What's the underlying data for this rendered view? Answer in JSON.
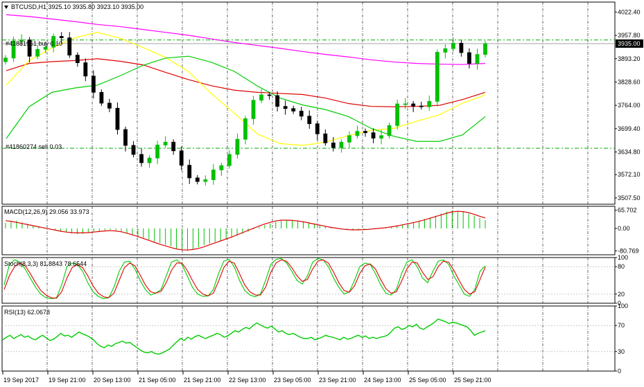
{
  "window": {
    "symbol_line": "BTCUSD,H1  3925.10 3935.80 3923.10 3935.00"
  },
  "colors": {
    "bull": "#00c000",
    "bear": "#000000",
    "ma_magenta": "#ff00ff",
    "ma_red": "#e00000",
    "ma_yellow": "#ffff00",
    "ma_green": "#00cc00",
    "grid": "#000000",
    "order_line": "#00aa00"
  },
  "chart_data": [
    {
      "type": "candlestick",
      "title": "BTCUSD,H1  3925.10 3935.80 3923.10 3935.00",
      "ylim": [
        3490,
        4050
      ],
      "y_ticks": [
        "4022.40",
        "3957.80",
        "3893.20",
        "3828.60",
        "3764.00",
        "3699.40",
        "3634.80",
        "3572.10",
        "3507.50"
      ],
      "current_price": "3935.00",
      "orders": [
        {
          "label": "#41881961 buy 0.10",
          "price": 3945
        },
        {
          "label": "#41860274 sell 0.03",
          "price": 3645
        }
      ],
      "series": [
        {
          "color": "#ff00ff",
          "values": [
            4015,
            4010,
            4003,
            3996,
            3988,
            3982,
            3974,
            3966,
            3958,
            3948,
            3938,
            3930,
            3922,
            3913,
            3905,
            3898,
            3890,
            3884,
            3880,
            3878,
            3877,
            3880
          ]
        },
        {
          "color": "#e00000",
          "values": [
            3860,
            3880,
            3885,
            3888,
            3893,
            3886,
            3876,
            3855,
            3835,
            3818,
            3806,
            3800,
            3797,
            3794,
            3784,
            3769,
            3761,
            3760,
            3761,
            3764,
            3780,
            3800
          ]
        },
        {
          "color": "#ffff00",
          "values": [
            3820,
            3888,
            3923,
            3951,
            3966,
            3950,
            3924,
            3896,
            3857,
            3796,
            3742,
            3685,
            3658,
            3653,
            3662,
            3680,
            3695,
            3700,
            3720,
            3738,
            3770,
            3793
          ]
        },
        {
          "color": "#00cc00",
          "values": [
            3672,
            3760,
            3800,
            3812,
            3820,
            3846,
            3875,
            3895,
            3900,
            3883,
            3858,
            3818,
            3784,
            3765,
            3752,
            3733,
            3700,
            3678,
            3664,
            3664,
            3682,
            3733
          ]
        }
      ],
      "candles_close": [
        3895,
        3942,
        3945,
        3900,
        3919,
        3925,
        3955,
        3951,
        3903,
        3882,
        3845,
        3800,
        3770,
        3756,
        3697,
        3653,
        3628,
        3605,
        3618,
        3654,
        3662,
        3638,
        3598,
        3563,
        3553,
        3558,
        3585,
        3597,
        3628,
        3670,
        3727,
        3778,
        3793,
        3791,
        3761,
        3755,
        3748,
        3734,
        3713,
        3685,
        3660,
        3647,
        3662,
        3680,
        3692,
        3688,
        3673,
        3680,
        3708,
        3768,
        3768,
        3762,
        3760,
        3775,
        3911,
        3921,
        3936,
        3910,
        3880,
        3905,
        3935
      ]
    },
    {
      "type": "histogram",
      "title": "MACD(12,26,9) 29.056 33.973",
      "y_ticks": [
        "65.702",
        "0.00",
        "-80.769"
      ],
      "ylim": [
        -95,
        80
      ],
      "values": [
        20,
        25,
        28,
        22,
        16,
        10,
        6,
        4,
        0,
        -4,
        -9,
        -14,
        -18,
        -20,
        -19,
        -16,
        -12,
        -9,
        -6,
        -5,
        -6,
        -10,
        -16,
        -22,
        -28,
        -34,
        -40,
        -47,
        -52,
        -59,
        -65,
        -72,
        -78,
        -80,
        -75,
        -68,
        -60,
        -54,
        -49,
        -44,
        -39,
        -33,
        -26,
        -19,
        -11,
        -3,
        5,
        12,
        18,
        24,
        28,
        30,
        31,
        29,
        26,
        22,
        17,
        12,
        8,
        4,
        0,
        -3,
        -5,
        -7,
        -6,
        -4,
        -2,
        0,
        2,
        4,
        7,
        11,
        15,
        19,
        23,
        28,
        34,
        40,
        46,
        54,
        60,
        65,
        64,
        60,
        54,
        46,
        38,
        30
      ],
      "signal": [
        28,
        26,
        22,
        18,
        14,
        10,
        6,
        2,
        -2,
        -6,
        -10,
        -13,
        -15,
        -16,
        -16,
        -15,
        -13,
        -11,
        -9,
        -8,
        -9,
        -12,
        -17,
        -23,
        -29,
        -36,
        -43,
        -50,
        -57,
        -63,
        -69,
        -74,
        -77,
        -78,
        -76,
        -72,
        -66,
        -59,
        -52,
        -45,
        -38,
        -31,
        -23,
        -15,
        -7,
        1,
        9,
        16,
        22,
        27,
        30,
        30,
        29,
        27,
        24,
        20,
        16,
        12,
        8,
        4,
        1,
        -2,
        -4,
        -5,
        -5,
        -4,
        -3,
        -1,
        1,
        3,
        6,
        9,
        13,
        17,
        21,
        26,
        31,
        37,
        43,
        49,
        55,
        60,
        62,
        61,
        57,
        51,
        44,
        38
      ]
    },
    {
      "type": "line",
      "title": "Stoch(8,3,3) 81.8843 78.6544",
      "y_ticks": [
        "100",
        "80",
        "20",
        "0"
      ],
      "ylim": [
        0,
        100
      ],
      "series": [
        {
          "color": "#00cc00",
          "values": [
            40,
            85,
            95,
            90,
            75,
            55,
            35,
            20,
            12,
            10,
            12,
            40,
            80,
            88,
            85,
            70,
            45,
            25,
            15,
            10,
            12,
            35,
            70,
            90,
            92,
            75,
            50,
            30,
            18,
            22,
            30,
            60,
            90,
            95,
            85,
            60,
            35,
            20,
            15,
            16,
            30,
            65,
            92,
            96,
            80,
            50,
            28,
            18,
            14,
            20,
            50,
            85,
            96,
            98,
            88,
            70,
            50,
            42,
            60,
            90,
            98,
            95,
            80,
            55,
            35,
            20,
            25,
            50,
            80,
            88,
            85,
            65,
            40,
            22,
            18,
            30,
            65,
            90,
            95,
            80,
            55,
            45,
            70,
            92,
            95,
            85,
            60,
            40,
            20,
            15,
            30,
            70,
            82
          ]
        },
        {
          "color": "#e00000",
          "values": [
            30,
            60,
            80,
            88,
            82,
            65,
            45,
            28,
            18,
            12,
            11,
            25,
            55,
            78,
            85,
            78,
            60,
            38,
            22,
            14,
            12,
            22,
            50,
            78,
            88,
            82,
            62,
            40,
            25,
            22,
            26,
            45,
            72,
            88,
            88,
            72,
            50,
            30,
            20,
            16,
            22,
            48,
            78,
            92,
            88,
            65,
            40,
            25,
            18,
            18,
            35,
            68,
            88,
            95,
            92,
            78,
            60,
            48,
            52,
            75,
            92,
            95,
            88,
            68,
            45,
            28,
            24,
            38,
            65,
            82,
            86,
            75,
            52,
            32,
            22,
            25,
            48,
            75,
            90,
            88,
            68,
            52,
            58,
            80,
            92,
            90,
            72,
            50,
            30,
            20,
            25,
            52,
            79
          ]
        }
      ]
    },
    {
      "type": "line",
      "title": "RSI(13) 62.0678",
      "y_ticks": [
        "100",
        "70",
        "30",
        "0"
      ],
      "ylim": [
        0,
        100
      ],
      "series": [
        {
          "color": "#00cc00",
          "values": [
            48,
            52,
            55,
            50,
            53,
            56,
            52,
            54,
            50,
            48,
            52,
            55,
            51,
            47,
            49,
            53,
            58,
            54,
            55,
            52,
            56,
            60,
            57,
            55,
            52,
            48,
            42,
            38,
            36,
            40,
            38,
            42,
            44,
            46,
            43,
            44,
            40,
            36,
            32,
            29,
            28,
            30,
            27,
            26,
            28,
            31,
            34,
            40,
            45,
            50,
            47,
            52,
            49,
            53,
            55,
            52,
            50,
            53,
            55,
            58,
            56,
            52,
            54,
            58,
            62,
            60,
            64,
            67,
            65,
            70,
            74,
            71,
            68,
            66,
            69,
            65,
            60,
            62,
            58,
            56,
            58,
            55,
            52,
            50,
            50,
            52,
            48,
            50,
            52,
            55,
            53,
            52,
            50,
            48,
            52,
            49,
            50,
            53,
            55,
            52,
            54,
            50,
            52,
            50,
            52,
            53,
            55,
            60,
            66,
            68,
            64,
            66,
            70,
            68,
            72,
            66,
            64,
            68,
            71,
            75,
            80,
            78,
            76,
            73,
            75,
            74,
            72,
            70,
            68,
            62,
            55,
            58,
            60,
            62
          ]
        }
      ]
    }
  ],
  "x_axis_labels": [
    "19 Sep 2017",
    "19 Sep 21:00",
    "20 Sep 13:00",
    "21 Sep 05:00",
    "21 Sep 21:00",
    "22 Sep 13:00",
    "23 Sep 05:00",
    "23 Sep 21:00",
    "24 Sep 13:00",
    "25 Sep 05:00",
    "25 Sep 21:00"
  ]
}
